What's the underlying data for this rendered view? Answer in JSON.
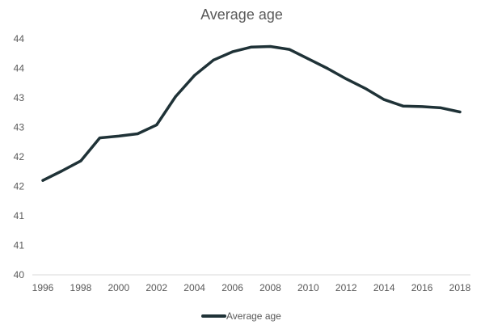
{
  "chart_data": {
    "type": "line",
    "title": "Average age",
    "xlabel": "",
    "ylabel": "",
    "x": [
      1996,
      1997,
      1998,
      1999,
      2000,
      2001,
      2002,
      2003,
      2004,
      2005,
      2006,
      2007,
      2008,
      2009,
      2010,
      2011,
      2012,
      2013,
      2014,
      2015,
      2016,
      2017,
      2018
    ],
    "series": [
      {
        "name": "Average age",
        "color": "#1f3237",
        "values": [
          41.6,
          41.76,
          41.93,
          42.32,
          42.35,
          42.39,
          42.54,
          43.02,
          43.38,
          43.64,
          43.78,
          43.86,
          43.87,
          43.82,
          43.66,
          43.5,
          43.32,
          43.16,
          42.97,
          42.86,
          42.85,
          42.83,
          42.76
        ]
      }
    ],
    "x_ticks": [
      "1996",
      "1998",
      "2000",
      "2002",
      "2004",
      "2006",
      "2008",
      "2010",
      "2012",
      "2014",
      "2016",
      "2018"
    ],
    "y_ticks": [
      "40",
      "41",
      "41",
      "42",
      "42",
      "43",
      "43",
      "44",
      "44"
    ],
    "y_tick_values": [
      40,
      40.5,
      41,
      41.5,
      42,
      42.5,
      43,
      43.5,
      44
    ],
    "ylim": [
      40,
      44
    ],
    "grid": false,
    "legend_position": "bottom"
  }
}
